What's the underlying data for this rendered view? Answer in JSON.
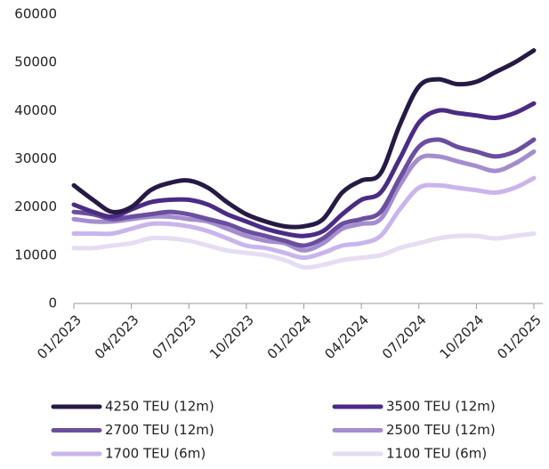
{
  "chart_data": {
    "type": "line",
    "categories": [
      "01/2023",
      null,
      null,
      "04/2023",
      null,
      null,
      "07/2023",
      null,
      null,
      "10/2023",
      null,
      null,
      "01/2024",
      null,
      null,
      "04/2024",
      null,
      null,
      "07/2024",
      null,
      null,
      "10/2024",
      null,
      null,
      "01/2025"
    ],
    "ylim": [
      0,
      60000
    ],
    "yticks": [
      0,
      10000,
      20000,
      30000,
      40000,
      50000,
      60000
    ],
    "grid": false,
    "series": [
      {
        "name": "4250 TEU (12m)",
        "color": "#261a45",
        "values": [
          24500,
          21500,
          19000,
          20000,
          23500,
          25000,
          25500,
          24000,
          21000,
          18500,
          17000,
          16000,
          16000,
          17500,
          23000,
          25500,
          27000,
          37000,
          45000,
          46500,
          45500,
          46000,
          48000,
          50000,
          52500
        ]
      },
      {
        "name": "3500 TEU (12m)",
        "color": "#4b2c85",
        "values": [
          20500,
          19000,
          18000,
          19500,
          21000,
          21500,
          21500,
          20500,
          18500,
          17000,
          15500,
          14500,
          14000,
          15000,
          18500,
          21500,
          23000,
          30000,
          37500,
          40000,
          39500,
          39000,
          38500,
          39500,
          41500
        ]
      },
      {
        "name": "2700 TEU (12m)",
        "color": "#6b4f9e",
        "values": [
          19000,
          18500,
          17500,
          18000,
          18500,
          19000,
          18500,
          17500,
          16500,
          15000,
          14000,
          13000,
          12000,
          13500,
          16500,
          17500,
          19000,
          26000,
          32500,
          34000,
          32500,
          31500,
          30500,
          31500,
          34000
        ]
      },
      {
        "name": "2500 TEU (12m)",
        "color": "#a48dce",
        "values": [
          17500,
          17000,
          17000,
          17500,
          18000,
          18000,
          17500,
          17000,
          15500,
          14000,
          13000,
          12500,
          11000,
          12500,
          15500,
          16500,
          17500,
          24500,
          30000,
          30500,
          29500,
          28500,
          27500,
          29000,
          31500
        ]
      },
      {
        "name": "1700 TEU (6m)",
        "color": "#c9b5ec",
        "values": [
          14500,
          14500,
          14500,
          15500,
          16500,
          16500,
          16000,
          15000,
          13500,
          12000,
          11500,
          10500,
          9500,
          10500,
          12000,
          12500,
          14000,
          19500,
          24000,
          24500,
          24000,
          23500,
          23000,
          24000,
          26000
        ]
      },
      {
        "name": "1100 TEU (6m)",
        "color": "#e6dcf3",
        "values": [
          11500,
          11500,
          12000,
          12500,
          13500,
          13500,
          13000,
          12000,
          11000,
          10500,
          10000,
          9000,
          7500,
          8000,
          9000,
          9500,
          10000,
          11500,
          12500,
          13500,
          14000,
          14000,
          13500,
          14000,
          14500
        ]
      }
    ]
  }
}
